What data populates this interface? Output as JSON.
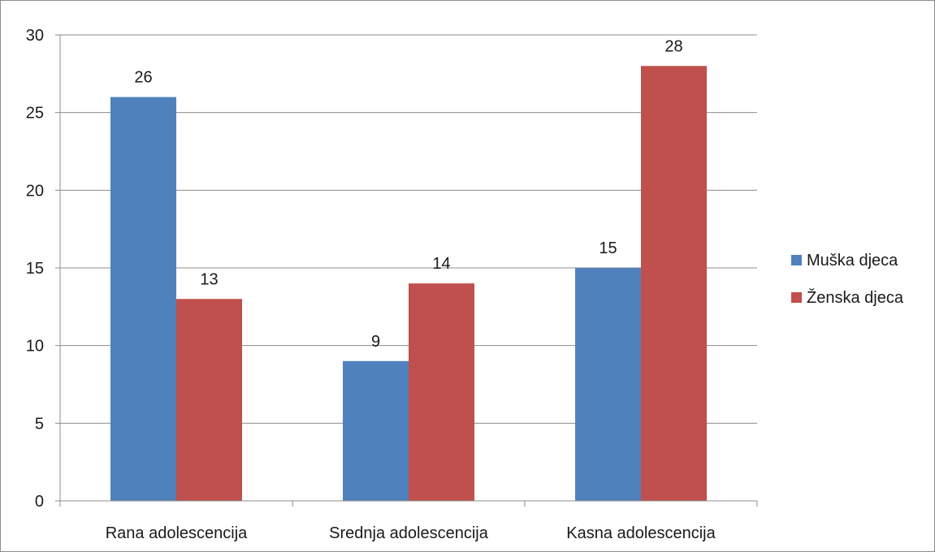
{
  "chart_data": {
    "type": "bar",
    "title": "",
    "xlabel": "",
    "ylabel": "",
    "categories": [
      "Rana adolescencija",
      "Srednja adolescencija",
      "Kasna adolescencija"
    ],
    "series": [
      {
        "name": "Muška djeca",
        "values": [
          26,
          9,
          15
        ],
        "color": "#4f81bd"
      },
      {
        "name": "Ženska djeca",
        "values": [
          13,
          14,
          28
        ],
        "color": "#c0504d"
      }
    ],
    "ylim": [
      0,
      30
    ],
    "yticks": [
      0,
      5,
      10,
      15,
      20,
      25,
      30
    ],
    "grid": true,
    "legend_position": "right",
    "data_labels": true
  }
}
